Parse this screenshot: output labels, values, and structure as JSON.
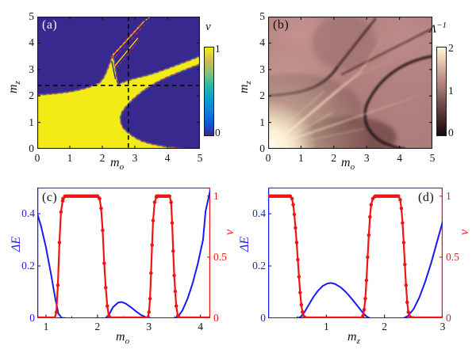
{
  "figure": {
    "background": "#ffffff",
    "colors": {
      "nu1_yellow": "#f2eb16",
      "nu0_blue": "#38298f",
      "boundary_red": "#e62020",
      "curve_blue": "#1a1aee",
      "curve_red": "#ee1515",
      "dashed_guide_black": "#0a0a0a",
      "pink_base": "#aa7b79"
    }
  },
  "chart_data": [
    {
      "id": "a",
      "type": "heatmap",
      "panel_label": "(a)",
      "xlabel": {
        "base": "m",
        "sub": "o"
      },
      "ylabel": {
        "base": "m",
        "sub": "z"
      },
      "xlim": [
        0,
        5
      ],
      "ylim": [
        0,
        5
      ],
      "xticks": [
        0,
        1,
        2,
        3,
        4,
        5
      ],
      "yticks": [
        0,
        1,
        2,
        3,
        4,
        5
      ],
      "colorbar": {
        "label": "ν",
        "tick_labels": [
          "1",
          "0"
        ],
        "tick_values": [
          1,
          0
        ],
        "colormap": "parula"
      },
      "dashed_guides": {
        "vertical_at_mo": 2.8,
        "horizontal_at_mz": 2.4
      },
      "regions": [
        {
          "name": "nu-equals-1",
          "color": "#f2eb16",
          "description": "topological region (nu=1): lower-left lobe with beak near mo=2.3 rising to mz=3.5, band extending right to (5,3.3), thin strip along mz=0 to mo=4.5"
        },
        {
          "name": "nu-equals-0",
          "color": "#38298f",
          "description": "trivial region (nu=0): upper area and parabolic intrusion opening rightward with vertex near (2.55,1.1)"
        },
        {
          "name": "phase-boundary",
          "color": "#e62020",
          "style": "dashed red along all region boundaries"
        }
      ]
    },
    {
      "id": "b",
      "type": "heatmap",
      "panel_label": "(b)",
      "xlabel": {
        "base": "m",
        "sub": "o"
      },
      "ylabel": {
        "base": "m",
        "sub": "z"
      },
      "xlim": [
        0,
        5
      ],
      "ylim": [
        0,
        5
      ],
      "xticks": [
        0,
        1,
        2,
        3,
        4,
        5
      ],
      "yticks": [
        0,
        1,
        2,
        3,
        4,
        5
      ],
      "colorbar": {
        "label_base": "Λ",
        "label_sup": "−1",
        "tick_labels": [
          "2",
          "1",
          "0"
        ],
        "tick_values": [
          2,
          1,
          0
        ],
        "colormap": "pink"
      },
      "features": "dark critical lines mirroring panel (a) boundaries; bright cream glow at origin with diagonal rays toward upper right; dark parabola vertex near (3.0,1.1)"
    },
    {
      "id": "c",
      "type": "line",
      "panel_label": "(c)",
      "xlabel": {
        "base": "m",
        "sub": "o"
      },
      "ylabel_left": "ΔE",
      "ylabel_right": "ν",
      "xlim": [
        0.83,
        4.19
      ],
      "ylim_left": [
        0,
        0.5
      ],
      "ylim_right": [
        0,
        1.07
      ],
      "xticks": [
        1,
        2,
        3,
        4
      ],
      "yticks_left": [
        0,
        0.2,
        0.4
      ],
      "yticks_right": [
        0,
        0.5,
        1
      ],
      "series": [
        {
          "name": "ΔE",
          "axis": "left",
          "color": "#1a1aee",
          "marker": "none",
          "points": [
            [
              0.83,
              0.4
            ],
            [
              0.9,
              0.355
            ],
            [
              1.0,
              0.27
            ],
            [
              1.1,
              0.165
            ],
            [
              1.18,
              0.075
            ],
            [
              1.24,
              0.018
            ],
            [
              1.3,
              0.002
            ],
            [
              1.4,
              0
            ],
            [
              2.15,
              0
            ],
            [
              2.22,
              0.012
            ],
            [
              2.3,
              0.042
            ],
            [
              2.4,
              0.06
            ],
            [
              2.47,
              0.062
            ],
            [
              2.55,
              0.056
            ],
            [
              2.65,
              0.042
            ],
            [
              2.75,
              0.026
            ],
            [
              2.85,
              0.012
            ],
            [
              2.95,
              0.003
            ],
            [
              3.05,
              0
            ],
            [
              3.5,
              0
            ],
            [
              3.58,
              0.01
            ],
            [
              3.65,
              0.03
            ],
            [
              3.75,
              0.075
            ],
            [
              3.85,
              0.135
            ],
            [
              3.95,
              0.21
            ],
            [
              4.05,
              0.3
            ],
            [
              4.1,
              0.41
            ],
            [
              4.19,
              0.49
            ]
          ]
        },
        {
          "name": "ν",
          "axis": "right",
          "color": "#ee1515",
          "marker": "filled-circle",
          "points": [
            [
              0.83,
              0
            ],
            [
              1.17,
              0
            ],
            [
              1.2,
              0.05
            ],
            [
              1.23,
              0.27
            ],
            [
              1.26,
              0.62
            ],
            [
              1.29,
              0.87
            ],
            [
              1.33,
              0.98
            ],
            [
              1.37,
              1
            ],
            [
              2.0,
              1
            ],
            [
              2.04,
              0.98
            ],
            [
              2.07,
              0.9
            ],
            [
              2.1,
              0.72
            ],
            [
              2.13,
              0.45
            ],
            [
              2.16,
              0.25
            ],
            [
              2.19,
              0.1
            ],
            [
              2.22,
              0.02
            ],
            [
              2.26,
              0
            ],
            [
              2.97,
              0
            ],
            [
              3.0,
              0.05
            ],
            [
              3.02,
              0.16
            ],
            [
              3.04,
              0.37
            ],
            [
              3.06,
              0.6
            ],
            [
              3.08,
              0.8
            ],
            [
              3.11,
              0.95
            ],
            [
              3.15,
              1
            ],
            [
              3.4,
              1
            ],
            [
              3.43,
              0.95
            ],
            [
              3.45,
              0.78
            ],
            [
              3.47,
              0.55
            ],
            [
              3.49,
              0.35
            ],
            [
              3.51,
              0.22
            ],
            [
              3.53,
              0.1
            ],
            [
              3.56,
              0.02
            ],
            [
              3.6,
              0
            ],
            [
              4.19,
              0
            ]
          ]
        }
      ]
    },
    {
      "id": "d",
      "type": "line",
      "panel_label": "(d)",
      "xlabel": {
        "base": "m",
        "sub": "z"
      },
      "ylabel_left": "ΔE",
      "ylabel_right": "ν",
      "xlim": [
        0,
        3
      ],
      "ylim_left": [
        0,
        0.5
      ],
      "ylim_right": [
        0,
        1.07
      ],
      "xticks": [
        1,
        2,
        3
      ],
      "yticks_left": [
        0,
        0.2,
        0.4
      ],
      "yticks_right": [
        0,
        0.5,
        1
      ],
      "series": [
        {
          "name": "ΔE",
          "axis": "left",
          "color": "#1a1aee",
          "marker": "none",
          "points": [
            [
              0,
              0
            ],
            [
              0.5,
              0
            ],
            [
              0.56,
              0.005
            ],
            [
              0.62,
              0.022
            ],
            [
              0.7,
              0.052
            ],
            [
              0.78,
              0.082
            ],
            [
              0.86,
              0.106
            ],
            [
              0.94,
              0.124
            ],
            [
              1.02,
              0.133
            ],
            [
              1.08,
              0.135
            ],
            [
              1.15,
              0.131
            ],
            [
              1.25,
              0.118
            ],
            [
              1.35,
              0.097
            ],
            [
              1.45,
              0.071
            ],
            [
              1.55,
              0.043
            ],
            [
              1.63,
              0.02
            ],
            [
              1.7,
              0.005
            ],
            [
              1.76,
              0
            ],
            [
              2.32,
              0
            ],
            [
              2.4,
              0.008
            ],
            [
              2.5,
              0.035
            ],
            [
              2.6,
              0.08
            ],
            [
              2.7,
              0.14
            ],
            [
              2.8,
              0.21
            ],
            [
              2.9,
              0.29
            ],
            [
              3.0,
              0.37
            ]
          ]
        },
        {
          "name": "ν",
          "axis": "right",
          "color": "#ee1515",
          "marker": "filled-circle",
          "points": [
            [
              0,
              1
            ],
            [
              0.38,
              1
            ],
            [
              0.41,
              0.98
            ],
            [
              0.43,
              0.93
            ],
            [
              0.45,
              0.85
            ],
            [
              0.47,
              0.74
            ],
            [
              0.49,
              0.62
            ],
            [
              0.51,
              0.48
            ],
            [
              0.53,
              0.34
            ],
            [
              0.55,
              0.21
            ],
            [
              0.57,
              0.11
            ],
            [
              0.59,
              0.05
            ],
            [
              0.62,
              0.01
            ],
            [
              0.66,
              0
            ],
            [
              1.6,
              0
            ],
            [
              1.63,
              0.02
            ],
            [
              1.65,
              0.07
            ],
            [
              1.67,
              0.16
            ],
            [
              1.69,
              0.31
            ],
            [
              1.71,
              0.5
            ],
            [
              1.73,
              0.68
            ],
            [
              1.75,
              0.83
            ],
            [
              1.77,
              0.93
            ],
            [
              1.8,
              0.98
            ],
            [
              1.84,
              1
            ],
            [
              2.24,
              1
            ],
            [
              2.27,
              0.97
            ],
            [
              2.29,
              0.9
            ],
            [
              2.31,
              0.78
            ],
            [
              2.33,
              0.62
            ],
            [
              2.35,
              0.44
            ],
            [
              2.37,
              0.27
            ],
            [
              2.39,
              0.13
            ],
            [
              2.41,
              0.05
            ],
            [
              2.44,
              0.01
            ],
            [
              2.48,
              0
            ],
            [
              3,
              0
            ]
          ]
        }
      ]
    }
  ]
}
